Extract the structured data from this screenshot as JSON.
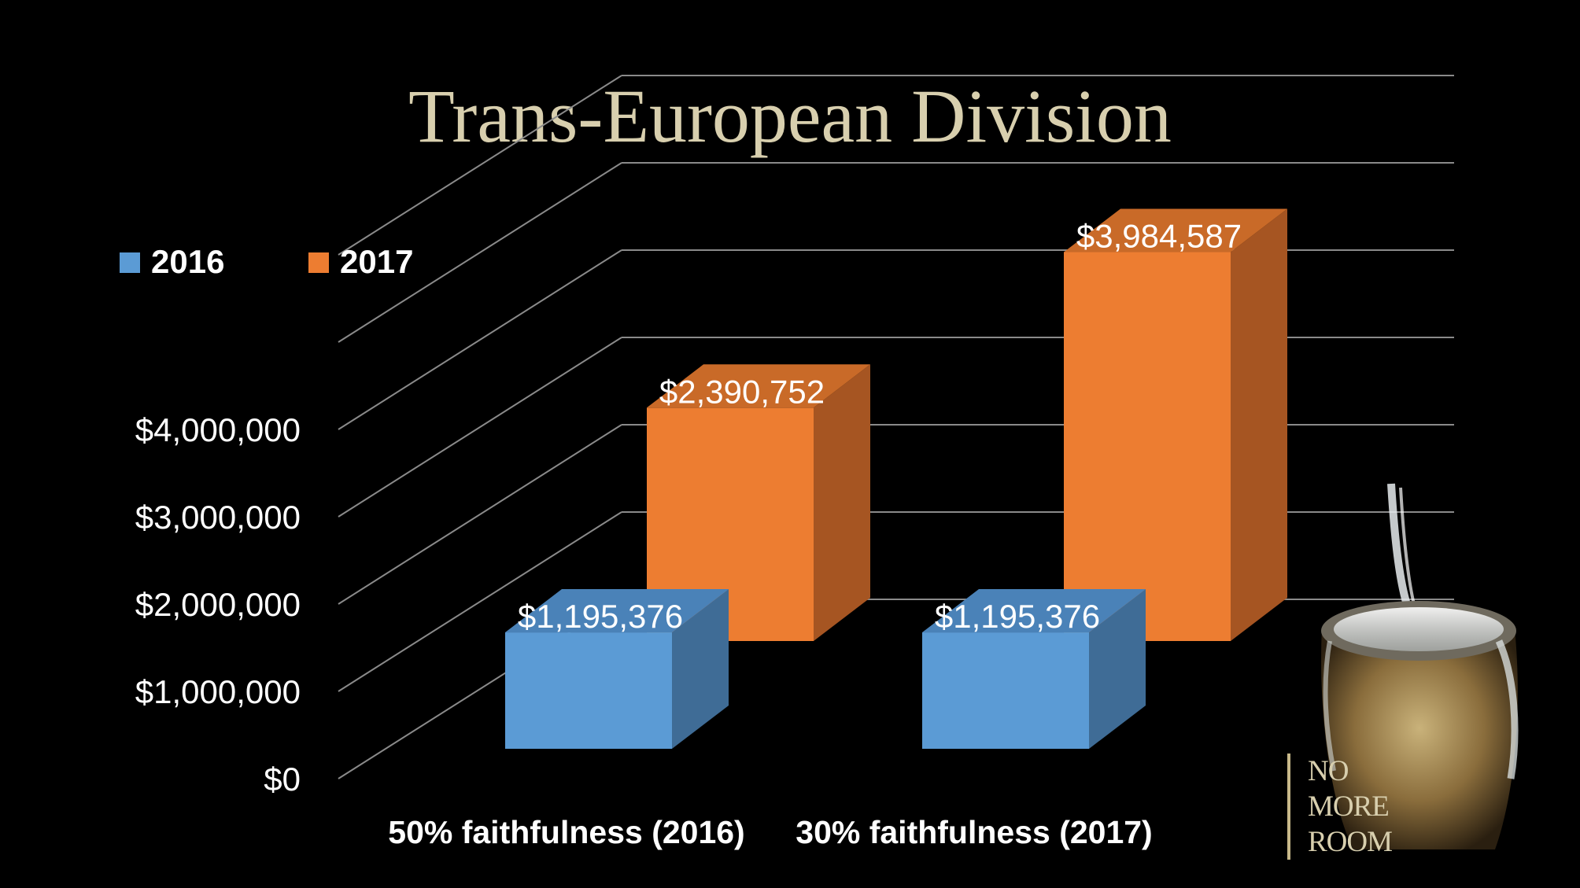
{
  "chart_data": {
    "type": "bar",
    "title": "Trans-European Division",
    "categories": [
      "50% faithfulness (2016)",
      "30% faithfulness (2017)"
    ],
    "series": [
      {
        "name": "2016",
        "values": [
          1195376,
          1195376
        ],
        "labels": [
          "$1,195,376",
          "$1,195,376"
        ]
      },
      {
        "name": "2017",
        "values": [
          2390752,
          3984587
        ],
        "labels": [
          "$2,390,752",
          "$3,984,587"
        ]
      }
    ],
    "ylim": [
      0,
      4000000
    ],
    "yticks": [
      "$0",
      "$1,000,000",
      "$2,000,000",
      "$3,000,000",
      "$4,000,000"
    ],
    "ytick_values": [
      0,
      1000000,
      2000000,
      3000000,
      4000000
    ],
    "xlabel": "",
    "ylabel": "",
    "grid": true,
    "legend": "top-left",
    "three_d": true
  },
  "colors": {
    "2016": "#5b9bd5",
    "2016_side": "#3f6c96",
    "2016_top": "#4a82b8",
    "2017": "#ed7d31",
    "2017_side": "#a65522",
    "2017_top": "#c96a28",
    "title": "#d8cfae",
    "background": "#000000",
    "grid": "#8a8a8a"
  },
  "branding": {
    "line1": "NO",
    "line2": "MORE",
    "line3": "ROOM"
  }
}
